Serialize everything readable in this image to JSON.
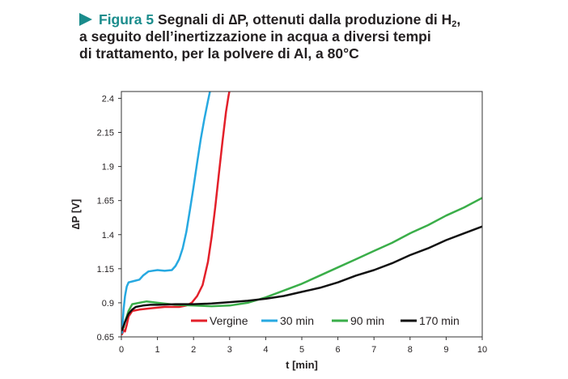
{
  "caption": {
    "figure_label": "Figura 5",
    "text_before_sub": " Segnali di ∆P, ottenuti dalla produzione di H",
    "subscript": "2",
    "text_after_sub": ",",
    "line2": "a seguito dell’inertizzazione in acqua a diversi tempi",
    "line3": "di trattamento, per la polvere di Al, a 80°C"
  },
  "colors": {
    "accent": "#1a8c8c",
    "Vergine": "#e3202a",
    "30 min": "#27a9e1",
    "90 min": "#3aae49",
    "170 min": "#111111"
  },
  "chart_data": {
    "type": "line",
    "xlabel": "t [min]",
    "ylabel": "∆P [V]",
    "xlim": [
      0,
      10
    ],
    "ylim": [
      0.65,
      2.45
    ],
    "xticks": [
      "0",
      "1",
      "2",
      "3",
      "4",
      "5",
      "6",
      "7",
      "8",
      "9",
      "10"
    ],
    "yticks": [
      "0.65",
      "0.9",
      "1.15",
      "1.4",
      "1.65",
      "1.9",
      "2.15",
      "2.4"
    ],
    "grid": false,
    "legend_position": "bottom-right, inside plot",
    "series": [
      {
        "name": "Vergine",
        "x": [
          0.02,
          0.06,
          0.1,
          0.15,
          0.2,
          0.3,
          0.5,
          0.8,
          1.2,
          1.6,
          1.8,
          1.95,
          2.1,
          2.25,
          2.4,
          2.5,
          2.6,
          2.7,
          2.8,
          2.9,
          2.97,
          3.03
        ],
        "y": [
          0.67,
          0.7,
          0.69,
          0.74,
          0.8,
          0.84,
          0.85,
          0.86,
          0.87,
          0.87,
          0.88,
          0.9,
          0.95,
          1.03,
          1.2,
          1.38,
          1.6,
          1.84,
          2.08,
          2.3,
          2.42,
          2.5
        ]
      },
      {
        "name": "30 min",
        "x": [
          0.02,
          0.06,
          0.1,
          0.15,
          0.2,
          0.35,
          0.5,
          0.6,
          0.75,
          1.0,
          1.2,
          1.4,
          1.5,
          1.6,
          1.7,
          1.8,
          1.9,
          2.0,
          2.1,
          2.2,
          2.3,
          2.4,
          2.47
        ],
        "y": [
          0.68,
          0.85,
          0.95,
          1.02,
          1.05,
          1.06,
          1.07,
          1.1,
          1.13,
          1.14,
          1.135,
          1.14,
          1.17,
          1.22,
          1.3,
          1.42,
          1.58,
          1.75,
          1.93,
          2.1,
          2.25,
          2.38,
          2.47
        ]
      },
      {
        "name": "90 min",
        "x": [
          0.02,
          0.06,
          0.1,
          0.2,
          0.3,
          0.5,
          0.7,
          1.0,
          1.5,
          2.0,
          2.5,
          3.0,
          3.5,
          4.0,
          4.5,
          5.0,
          5.5,
          6.0,
          6.5,
          7.0,
          7.5,
          8.0,
          8.5,
          9.0,
          9.5,
          10.0
        ],
        "y": [
          0.7,
          0.72,
          0.76,
          0.84,
          0.89,
          0.9,
          0.91,
          0.9,
          0.885,
          0.88,
          0.875,
          0.88,
          0.9,
          0.94,
          0.99,
          1.04,
          1.1,
          1.16,
          1.22,
          1.28,
          1.34,
          1.41,
          1.47,
          1.54,
          1.6,
          1.67
        ]
      },
      {
        "name": "170 min",
        "x": [
          0.02,
          0.06,
          0.1,
          0.2,
          0.3,
          0.4,
          0.6,
          0.8,
          1.0,
          1.5,
          2.0,
          2.5,
          3.0,
          3.5,
          4.0,
          4.5,
          5.0,
          5.5,
          6.0,
          6.5,
          7.0,
          7.5,
          8.0,
          8.5,
          9.0,
          9.5,
          10.0
        ],
        "y": [
          0.7,
          0.73,
          0.76,
          0.82,
          0.85,
          0.87,
          0.88,
          0.885,
          0.885,
          0.89,
          0.89,
          0.895,
          0.905,
          0.915,
          0.93,
          0.95,
          0.98,
          1.01,
          1.05,
          1.1,
          1.14,
          1.19,
          1.25,
          1.3,
          1.36,
          1.41,
          1.46
        ]
      }
    ]
  }
}
